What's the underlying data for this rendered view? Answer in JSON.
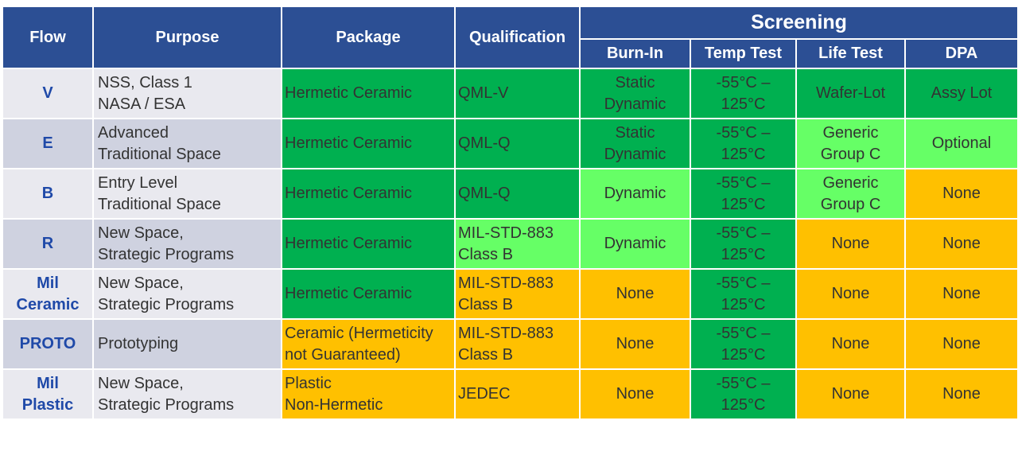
{
  "colors": {
    "header_bg": "#2c4f94",
    "flow_text": "#1f49a8",
    "dark_green": "#00b050",
    "light_green": "#66ff66",
    "amber": "#ffc000",
    "row_odd_bg": "#e9e9ef",
    "row_even_bg": "#cfd2e0"
  },
  "header": {
    "flow": "Flow",
    "purpose": "Purpose",
    "package": "Package",
    "qualification": "Qualification",
    "screening": "Screening",
    "burn_in": "Burn-In",
    "temp_test": "Temp Test",
    "life_test": "Life Test",
    "dpa": "DPA"
  },
  "rows": [
    {
      "flow": "V",
      "purpose": "NSS, Class 1\nNASA / ESA",
      "package": "Hermetic Ceramic",
      "qualification": "QML-V",
      "burn_in": "Static\nDynamic",
      "temp_test": "-55°C –\n125°C",
      "life_test": "Wafer-Lot",
      "dpa": "Assy Lot",
      "colors": {
        "package": "dark",
        "qualification": "dark",
        "burn_in": "dark",
        "temp_test": "dark",
        "life_test": "dark",
        "dpa": "dark"
      }
    },
    {
      "flow": "E",
      "purpose": "Advanced\nTraditional Space",
      "package": "Hermetic Ceramic",
      "qualification": "QML-Q",
      "burn_in": "Static\nDynamic",
      "temp_test": "-55°C –\n125°C",
      "life_test": "Generic\nGroup C",
      "dpa": "Optional",
      "colors": {
        "package": "dark",
        "qualification": "dark",
        "burn_in": "dark",
        "temp_test": "dark",
        "life_test": "light",
        "dpa": "light"
      }
    },
    {
      "flow": "B",
      "purpose": "Entry Level\nTraditional Space",
      "package": "Hermetic Ceramic",
      "qualification": "QML-Q",
      "burn_in": "Dynamic",
      "temp_test": "-55°C –\n125°C",
      "life_test": "Generic\nGroup C",
      "dpa": "None",
      "colors": {
        "package": "dark",
        "qualification": "dark",
        "burn_in": "light",
        "temp_test": "dark",
        "life_test": "light",
        "dpa": "amber"
      }
    },
    {
      "flow": "R",
      "purpose": "New Space,\nStrategic Programs",
      "package": "Hermetic Ceramic",
      "qualification": "MIL-STD-883\nClass B",
      "burn_in": "Dynamic",
      "temp_test": "-55°C –\n125°C",
      "life_test": "None",
      "dpa": "None",
      "colors": {
        "package": "dark",
        "qualification": "light",
        "burn_in": "light",
        "temp_test": "dark",
        "life_test": "amber",
        "dpa": "amber"
      }
    },
    {
      "flow": "Mil\nCeramic",
      "purpose": "New Space,\nStrategic Programs",
      "package": "Hermetic Ceramic",
      "qualification": "MIL-STD-883\nClass B",
      "burn_in": "None",
      "temp_test": "-55°C –\n125°C",
      "life_test": "None",
      "dpa": "None",
      "colors": {
        "package": "dark",
        "qualification": "amber",
        "burn_in": "amber",
        "temp_test": "dark",
        "life_test": "amber",
        "dpa": "amber"
      }
    },
    {
      "flow": "PROTO",
      "purpose": "Prototyping",
      "package": "Ceramic (Hermeticity\nnot Guaranteed)",
      "qualification": "MIL-STD-883\nClass B",
      "burn_in": "None",
      "temp_test": "-55°C –\n125°C",
      "life_test": "None",
      "dpa": "None",
      "colors": {
        "package": "amber",
        "qualification": "amber",
        "burn_in": "amber",
        "temp_test": "dark",
        "life_test": "amber",
        "dpa": "amber"
      }
    },
    {
      "flow": "Mil\nPlastic",
      "purpose": "New Space,\nStrategic Programs",
      "package": "Plastic\nNon-Hermetic",
      "qualification": "JEDEC",
      "burn_in": "None",
      "temp_test": "-55°C –\n125°C",
      "life_test": "None",
      "dpa": "None",
      "colors": {
        "package": "amber",
        "qualification": "amber",
        "burn_in": "amber",
        "temp_test": "dark",
        "life_test": "amber",
        "dpa": "amber"
      }
    }
  ]
}
